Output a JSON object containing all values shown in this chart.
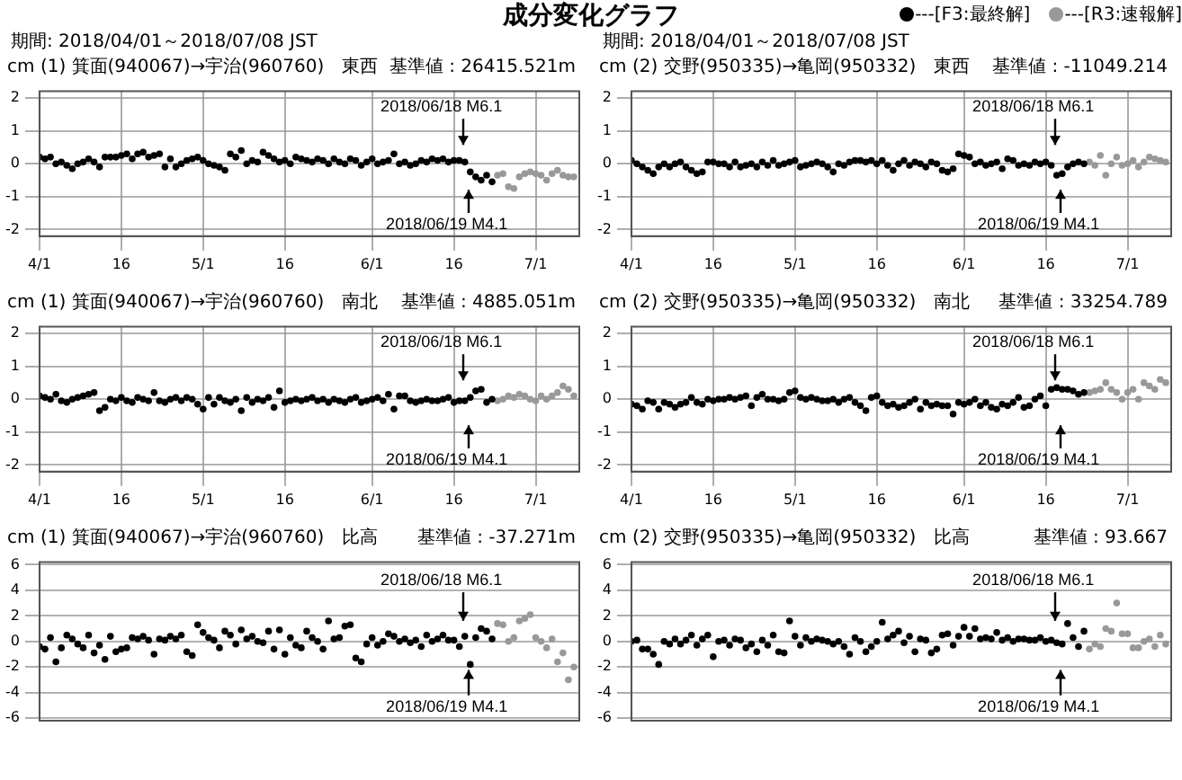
{
  "chart_data": [
    {
      "type": "scatter",
      "title": "(1) 箕面(940067)→宇治(960760)　東西",
      "subtitle": "期間: 2018/04/01～2018/07/08 JST",
      "ylabel": "cm",
      "marker": "circle",
      "grid": true,
      "xlim": [
        "2018-04-01",
        "2018-07-09"
      ],
      "ylim": [
        -2.2,
        2.2
      ],
      "yticks": [
        -2,
        -1,
        0,
        1,
        2
      ],
      "xticks": [
        {
          "value": "2018-04-01",
          "label": "4/1"
        },
        {
          "value": "2018-04-16",
          "label": "16"
        },
        {
          "value": "2018-05-01",
          "label": "5/1"
        },
        {
          "value": "2018-05-16",
          "label": "16"
        },
        {
          "value": "2018-06-01",
          "label": "6/1"
        },
        {
          "value": "2018-06-16",
          "label": "16"
        },
        {
          "value": "2018-07-01",
          "label": "7/1"
        }
      ],
      "annotations": [
        "基準値 : 26415.521m",
        "2018/06/18 M6.1",
        "2018/06/19 M4.1",
        "成分変化グラフ"
      ],
      "x": [
        "2018-04-01",
        "2018-04-02",
        "2018-04-03",
        "2018-04-04",
        "2018-04-05",
        "2018-04-06",
        "2018-04-07",
        "2018-04-08",
        "2018-04-09",
        "2018-04-10",
        "2018-04-11",
        "2018-04-12",
        "2018-04-13",
        "2018-04-14",
        "2018-04-15",
        "2018-04-16",
        "2018-04-17",
        "2018-04-18",
        "2018-04-19",
        "2018-04-20",
        "2018-04-21",
        "2018-04-22",
        "2018-04-23",
        "2018-04-24",
        "2018-04-25",
        "2018-04-26",
        "2018-04-27",
        "2018-04-28",
        "2018-04-29",
        "2018-04-30",
        "2018-05-01",
        "2018-05-02",
        "2018-05-03",
        "2018-05-04",
        "2018-05-05",
        "2018-05-06",
        "2018-05-07",
        "2018-05-08",
        "2018-05-09",
        "2018-05-10",
        "2018-05-11",
        "2018-05-12",
        "2018-05-13",
        "2018-05-14",
        "2018-05-15",
        "2018-05-16",
        "2018-05-17",
        "2018-05-18",
        "2018-05-19",
        "2018-05-20",
        "2018-05-21",
        "2018-05-22",
        "2018-05-23",
        "2018-05-24",
        "2018-05-25",
        "2018-05-26",
        "2018-05-27",
        "2018-05-28",
        "2018-05-29",
        "2018-05-30",
        "2018-05-31",
        "2018-06-01",
        "2018-06-02",
        "2018-06-03",
        "2018-06-04",
        "2018-06-05",
        "2018-06-06",
        "2018-06-07",
        "2018-06-08",
        "2018-06-09",
        "2018-06-10",
        "2018-06-11",
        "2018-06-12",
        "2018-06-13",
        "2018-06-14",
        "2018-06-15",
        "2018-06-16",
        "2018-06-17",
        "2018-06-18",
        "2018-06-19",
        "2018-06-20",
        "2018-06-21",
        "2018-06-22",
        "2018-06-23"
      ],
      "series": [
        {
          "color": "#000000",
          "values": [
            0.2,
            0.15,
            0.2,
            0,
            0.05,
            -0.05,
            -0.15,
            0,
            0.05,
            0.15,
            0.05,
            -0.1,
            0.2,
            0.2,
            0.2,
            0.25,
            0.3,
            0.15,
            0.3,
            0.35,
            0.2,
            0.25,
            0.3,
            -0.1,
            0.15,
            -0.1,
            0,
            0.1,
            0.15,
            0.2,
            0.1,
            0,
            -0.05,
            -0.1,
            -0.2,
            0.3,
            0.2,
            0.4,
            0,
            0.1,
            0.05,
            0.35,
            0.25,
            0.15,
            0.05,
            0.1,
            0,
            0.2,
            0.15,
            0.1,
            0.05,
            0.15,
            0.1,
            0,
            0.15,
            0.05,
            0,
            0.15,
            0.1,
            -0.05,
            0.05,
            0.15,
            0,
            0.05,
            0.1,
            0.3,
            0,
            0.05,
            -0.05,
            0,
            0.1,
            0.05,
            0.15,
            0.1,
            0.15,
            0.05,
            0.1,
            0.1,
            0.05,
            -0.25,
            -0.4,
            -0.5,
            -0.35,
            -0.55
          ]
        },
        {
          "color": "#999999",
          "x": [
            "2018-06-24",
            "2018-06-25",
            "2018-06-26",
            "2018-06-27",
            "2018-06-28",
            "2018-06-29",
            "2018-06-30",
            "2018-07-01",
            "2018-07-02",
            "2018-07-03",
            "2018-07-04",
            "2018-07-05",
            "2018-07-06",
            "2018-07-07",
            "2018-07-08"
          ],
          "values": [
            -0.35,
            -0.3,
            -0.7,
            -0.75,
            -0.4,
            -0.3,
            -0.25,
            -0.3,
            -0.35,
            -0.5,
            -0.3,
            -0.2,
            -0.35,
            -0.4,
            -0.4
          ]
        }
      ]
    },
    {
      "type": "scatter",
      "title": "(2) 交野(950335)→亀岡(950332)　東西",
      "subtitle": "期間: 2018/04/01～2018/07/08 JST",
      "ylabel": "cm",
      "marker": "circle",
      "grid": true,
      "legend": "top right",
      "xlim": [
        "2018-04-01",
        "2018-07-09"
      ],
      "ylim": [
        -2.2,
        2.2
      ],
      "yticks": [
        -2,
        -1,
        0,
        1,
        2
      ],
      "xticks": [
        {
          "value": "2018-04-01",
          "label": "4/1"
        },
        {
          "value": "2018-04-16",
          "label": "16"
        },
        {
          "value": "2018-05-01",
          "label": "5/1"
        },
        {
          "value": "2018-05-16",
          "label": "16"
        },
        {
          "value": "2018-06-01",
          "label": "6/1"
        },
        {
          "value": "2018-06-16",
          "label": "16"
        },
        {
          "value": "2018-07-01",
          "label": "7/1"
        }
      ],
      "annotations": [
        "基準値 : -11049.214",
        "2018/06/18 M6.1",
        "2018/06/19 M4.1"
      ],
      "x": [
        "2018-04-01",
        "2018-04-02",
        "2018-04-03",
        "2018-04-04",
        "2018-04-05",
        "2018-04-06",
        "2018-04-07",
        "2018-04-08",
        "2018-04-09",
        "2018-04-10",
        "2018-04-11",
        "2018-04-12",
        "2018-04-13",
        "2018-04-14",
        "2018-04-15",
        "2018-04-16",
        "2018-04-17",
        "2018-04-18",
        "2018-04-19",
        "2018-04-20",
        "2018-04-21",
        "2018-04-22",
        "2018-04-23",
        "2018-04-24",
        "2018-04-25",
        "2018-04-26",
        "2018-04-27",
        "2018-04-28",
        "2018-04-29",
        "2018-04-30",
        "2018-05-01",
        "2018-05-02",
        "2018-05-03",
        "2018-05-04",
        "2018-05-05",
        "2018-05-06",
        "2018-05-07",
        "2018-05-08",
        "2018-05-09",
        "2018-05-10",
        "2018-05-11",
        "2018-05-12",
        "2018-05-13",
        "2018-05-14",
        "2018-05-15",
        "2018-05-16",
        "2018-05-17",
        "2018-05-18",
        "2018-05-19",
        "2018-05-20",
        "2018-05-21",
        "2018-05-22",
        "2018-05-23",
        "2018-05-24",
        "2018-05-25",
        "2018-05-26",
        "2018-05-27",
        "2018-05-28",
        "2018-05-29",
        "2018-05-30",
        "2018-05-31",
        "2018-06-01",
        "2018-06-02",
        "2018-06-03",
        "2018-06-04",
        "2018-06-05",
        "2018-06-06",
        "2018-06-07",
        "2018-06-08",
        "2018-06-09",
        "2018-06-10",
        "2018-06-11",
        "2018-06-12",
        "2018-06-13",
        "2018-06-14",
        "2018-06-15",
        "2018-06-16",
        "2018-06-17",
        "2018-06-18",
        "2018-06-19",
        "2018-06-20",
        "2018-06-21",
        "2018-06-22",
        "2018-06-23"
      ],
      "series": [
        {
          "name": "---[F3:最終解]",
          "color": "#000000",
          "values": [
            0.1,
            0,
            -0.1,
            -0.2,
            -0.3,
            -0.1,
            0,
            -0.1,
            0,
            0.05,
            -0.1,
            -0.2,
            -0.3,
            -0.25,
            0.05,
            0.05,
            0,
            0,
            -0.1,
            0.05,
            -0.1,
            -0.05,
            0,
            -0.1,
            0.05,
            -0.05,
            0.1,
            -0.05,
            0,
            0.05,
            0.1,
            -0.1,
            -0.05,
            0,
            0.05,
            0,
            -0.1,
            -0.25,
            0,
            -0.05,
            0.05,
            0.1,
            0.1,
            0.05,
            0.1,
            0,
            0.1,
            -0.05,
            -0.2,
            0,
            0.1,
            -0.05,
            0.05,
            0,
            -0.1,
            0.05,
            0,
            -0.2,
            -0.25,
            -0.15,
            0.3,
            0.25,
            0.2,
            0,
            0.05,
            -0.05,
            0,
            0.05,
            -0.15,
            0.15,
            0.1,
            -0.05,
            0,
            -0.05,
            0.05,
            0,
            0.05,
            -0.05,
            -0.35,
            -0.3,
            -0.1,
            0,
            0.05,
            0
          ]
        },
        {
          "name": "---[R3:速報解]",
          "color": "#999999",
          "x": [
            "2018-06-24",
            "2018-06-25",
            "2018-06-26",
            "2018-06-27",
            "2018-06-28",
            "2018-06-29",
            "2018-06-30",
            "2018-07-01",
            "2018-07-02",
            "2018-07-03",
            "2018-07-04",
            "2018-07-05",
            "2018-07-06",
            "2018-07-07",
            "2018-07-08"
          ],
          "values": [
            0.05,
            -0.05,
            0.25,
            -0.35,
            0,
            0.2,
            -0.05,
            0,
            0.1,
            -0.1,
            0.05,
            0.2,
            0.15,
            0.1,
            0.05
          ]
        }
      ]
    },
    {
      "type": "scatter",
      "title": "(1) 箕面(940067)→宇治(960760)　南北",
      "ylabel": "cm",
      "marker": "circle",
      "grid": true,
      "xlim": [
        "2018-04-01",
        "2018-07-09"
      ],
      "ylim": [
        -2.2,
        2.2
      ],
      "yticks": [
        -2,
        -1,
        0,
        1,
        2
      ],
      "xticks": [
        {
          "value": "2018-04-01",
          "label": "4/1"
        },
        {
          "value": "2018-04-16",
          "label": "16"
        },
        {
          "value": "2018-05-01",
          "label": "5/1"
        },
        {
          "value": "2018-05-16",
          "label": "16"
        },
        {
          "value": "2018-06-01",
          "label": "6/1"
        },
        {
          "value": "2018-06-16",
          "label": "16"
        },
        {
          "value": "2018-07-01",
          "label": "7/1"
        }
      ],
      "annotations": [
        "基準値 : 4885.051m",
        "2018/06/18 M6.1",
        "2018/06/19 M4.1"
      ],
      "x": [
        "2018-04-01",
        "2018-04-02",
        "2018-04-03",
        "2018-04-04",
        "2018-04-05",
        "2018-04-06",
        "2018-04-07",
        "2018-04-08",
        "2018-04-09",
        "2018-04-10",
        "2018-04-11",
        "2018-04-12",
        "2018-04-13",
        "2018-04-14",
        "2018-04-15",
        "2018-04-16",
        "2018-04-17",
        "2018-04-18",
        "2018-04-19",
        "2018-04-20",
        "2018-04-21",
        "2018-04-22",
        "2018-04-23",
        "2018-04-24",
        "2018-04-25",
        "2018-04-26",
        "2018-04-27",
        "2018-04-28",
        "2018-04-29",
        "2018-04-30",
        "2018-05-01",
        "2018-05-02",
        "2018-05-03",
        "2018-05-04",
        "2018-05-05",
        "2018-05-06",
        "2018-05-07",
        "2018-05-08",
        "2018-05-09",
        "2018-05-10",
        "2018-05-11",
        "2018-05-12",
        "2018-05-13",
        "2018-05-14",
        "2018-05-15",
        "2018-05-16",
        "2018-05-17",
        "2018-05-18",
        "2018-05-19",
        "2018-05-20",
        "2018-05-21",
        "2018-05-22",
        "2018-05-23",
        "2018-05-24",
        "2018-05-25",
        "2018-05-26",
        "2018-05-27",
        "2018-05-28",
        "2018-05-29",
        "2018-05-30",
        "2018-05-31",
        "2018-06-01",
        "2018-06-02",
        "2018-06-03",
        "2018-06-04",
        "2018-06-05",
        "2018-06-06",
        "2018-06-07",
        "2018-06-08",
        "2018-06-09",
        "2018-06-10",
        "2018-06-11",
        "2018-06-12",
        "2018-06-13",
        "2018-06-14",
        "2018-06-15",
        "2018-06-16",
        "2018-06-17",
        "2018-06-18",
        "2018-06-19",
        "2018-06-20",
        "2018-06-21",
        "2018-06-22",
        "2018-06-23"
      ],
      "series": [
        {
          "color": "#000000",
          "values": [
            0.1,
            0.05,
            0,
            0.15,
            -0.05,
            -0.1,
            0,
            0.05,
            0.1,
            0.15,
            0.2,
            -0.35,
            -0.25,
            0,
            -0.05,
            0.05,
            -0.05,
            -0.1,
            0.05,
            0,
            -0.05,
            0.2,
            -0.05,
            -0.1,
            0,
            0.05,
            -0.05,
            0.05,
            0,
            -0.15,
            -0.3,
            0.05,
            -0.15,
            0.05,
            -0.05,
            -0.1,
            0,
            -0.35,
            0.05,
            -0.1,
            0,
            -0.05,
            0.05,
            -0.25,
            0.25,
            -0.1,
            -0.05,
            0,
            -0.05,
            0,
            0.05,
            -0.05,
            0,
            -0.1,
            0,
            -0.05,
            -0.1,
            0,
            0.05,
            -0.1,
            -0.05,
            0,
            0.05,
            -0.05,
            0.15,
            -0.3,
            0.1,
            0.1,
            -0.05,
            -0.1,
            -0.05,
            0,
            -0.05,
            -0.05,
            0,
            0.05,
            -0.1,
            -0.05,
            -0.05,
            0.05,
            0.25,
            0.3,
            -0.1,
            0
          ]
        },
        {
          "color": "#999999",
          "x": [
            "2018-06-24",
            "2018-06-25",
            "2018-06-26",
            "2018-06-27",
            "2018-06-28",
            "2018-06-29",
            "2018-06-30",
            "2018-07-01",
            "2018-07-02",
            "2018-07-03",
            "2018-07-04",
            "2018-07-05",
            "2018-07-06",
            "2018-07-07",
            "2018-07-08"
          ],
          "values": [
            -0.05,
            0,
            0.1,
            0.05,
            0.15,
            0.1,
            0,
            -0.05,
            0.1,
            0,
            0.1,
            0.2,
            0.4,
            0.3,
            0.1
          ]
        }
      ]
    },
    {
      "type": "scatter",
      "title": "(2) 交野(950335)→亀岡(950332)　南北",
      "ylabel": "cm",
      "marker": "circle",
      "grid": true,
      "xlim": [
        "2018-04-01",
        "2018-07-09"
      ],
      "ylim": [
        -2.2,
        2.2
      ],
      "yticks": [
        -2,
        -1,
        0,
        1,
        2
      ],
      "xticks": [
        {
          "value": "2018-04-01",
          "label": "4/1"
        },
        {
          "value": "2018-04-16",
          "label": "16"
        },
        {
          "value": "2018-05-01",
          "label": "5/1"
        },
        {
          "value": "2018-05-16",
          "label": "16"
        },
        {
          "value": "2018-06-01",
          "label": "6/1"
        },
        {
          "value": "2018-06-16",
          "label": "16"
        },
        {
          "value": "2018-07-01",
          "label": "7/1"
        }
      ],
      "annotations": [
        "基準値 : 33254.789",
        "2018/06/18 M6.1",
        "2018/06/19 M4.1"
      ],
      "x": [
        "2018-04-01",
        "2018-04-02",
        "2018-04-03",
        "2018-04-04",
        "2018-04-05",
        "2018-04-06",
        "2018-04-07",
        "2018-04-08",
        "2018-04-09",
        "2018-04-10",
        "2018-04-11",
        "2018-04-12",
        "2018-04-13",
        "2018-04-14",
        "2018-04-15",
        "2018-04-16",
        "2018-04-17",
        "2018-04-18",
        "2018-04-19",
        "2018-04-20",
        "2018-04-21",
        "2018-04-22",
        "2018-04-23",
        "2018-04-24",
        "2018-04-25",
        "2018-04-26",
        "2018-04-27",
        "2018-04-28",
        "2018-04-29",
        "2018-04-30",
        "2018-05-01",
        "2018-05-02",
        "2018-05-03",
        "2018-05-04",
        "2018-05-05",
        "2018-05-06",
        "2018-05-07",
        "2018-05-08",
        "2018-05-09",
        "2018-05-10",
        "2018-05-11",
        "2018-05-12",
        "2018-05-13",
        "2018-05-14",
        "2018-05-15",
        "2018-05-16",
        "2018-05-17",
        "2018-05-18",
        "2018-05-19",
        "2018-05-20",
        "2018-05-21",
        "2018-05-22",
        "2018-05-23",
        "2018-05-24",
        "2018-05-25",
        "2018-05-26",
        "2018-05-27",
        "2018-05-28",
        "2018-05-29",
        "2018-05-30",
        "2018-05-31",
        "2018-06-01",
        "2018-06-02",
        "2018-06-03",
        "2018-06-04",
        "2018-06-05",
        "2018-06-06",
        "2018-06-07",
        "2018-06-08",
        "2018-06-09",
        "2018-06-10",
        "2018-06-11",
        "2018-06-12",
        "2018-06-13",
        "2018-06-14",
        "2018-06-15",
        "2018-06-16",
        "2018-06-17",
        "2018-06-18",
        "2018-06-19",
        "2018-06-20",
        "2018-06-21",
        "2018-06-22",
        "2018-06-23"
      ],
      "series": [
        {
          "color": "#000000",
          "values": [
            -0.15,
            -0.2,
            -0.3,
            -0.05,
            -0.1,
            -0.3,
            -0.1,
            -0.15,
            -0.25,
            -0.15,
            -0.1,
            0.05,
            -0.1,
            -0.15,
            0,
            -0.05,
            0,
            0,
            0.05,
            0,
            0.05,
            0.1,
            -0.2,
            0.05,
            0.15,
            0,
            0,
            -0.05,
            0,
            0.2,
            0.25,
            0.05,
            0,
            0.05,
            0,
            -0.05,
            -0.05,
            0,
            -0.1,
            0,
            0.05,
            -0.1,
            -0.2,
            -0.35,
            0.05,
            0.1,
            -0.1,
            -0.2,
            -0.15,
            -0.25,
            -0.2,
            -0.1,
            0,
            -0.3,
            -0.1,
            -0.2,
            -0.15,
            -0.2,
            -0.2,
            -0.45,
            -0.1,
            -0.15,
            -0.1,
            0,
            -0.2,
            -0.1,
            -0.25,
            -0.3,
            -0.15,
            -0.2,
            -0.1,
            0.05,
            -0.25,
            -0.2,
            0,
            0.1,
            -0.2,
            0.3,
            0.35,
            0.3,
            0.3,
            0.25,
            0.15,
            0.2
          ]
        },
        {
          "color": "#999999",
          "x": [
            "2018-06-24",
            "2018-06-25",
            "2018-06-26",
            "2018-06-27",
            "2018-06-28",
            "2018-06-29",
            "2018-06-30",
            "2018-07-01",
            "2018-07-02",
            "2018-07-03",
            "2018-07-04",
            "2018-07-05",
            "2018-07-06",
            "2018-07-07",
            "2018-07-08"
          ],
          "values": [
            0.2,
            0.25,
            0.3,
            0.5,
            0.3,
            0.2,
            0,
            0.2,
            0.3,
            0,
            0.5,
            0.4,
            0.3,
            0.6,
            0.5
          ]
        }
      ]
    },
    {
      "type": "scatter",
      "title": "(1) 箕面(940067)→宇治(960760)　比高",
      "ylabel": "cm",
      "marker": "circle",
      "grid": true,
      "tick_labels": "y",
      "xlim": [
        "2018-04-01",
        "2018-07-09"
      ],
      "ylim": [
        -6.2,
        6.2
      ],
      "yticks": [
        -6,
        -4,
        -2,
        0,
        2,
        4,
        6
      ],
      "xticks": [
        {
          "value": "2018-04-01",
          "label": null
        },
        {
          "value": "2018-04-16",
          "label": null
        },
        {
          "value": "2018-05-01",
          "label": null
        },
        {
          "value": "2018-05-16",
          "label": null
        },
        {
          "value": "2018-06-01",
          "label": null
        },
        {
          "value": "2018-06-16",
          "label": null
        },
        {
          "value": "2018-07-01",
          "label": null
        }
      ],
      "annotations": [
        "基準値 : -37.271m",
        "2018/06/18 M6.1",
        "2018/06/19 M4.1"
      ],
      "x": [
        "2018-04-01",
        "2018-04-02",
        "2018-04-03",
        "2018-04-04",
        "2018-04-05",
        "2018-04-06",
        "2018-04-07",
        "2018-04-08",
        "2018-04-09",
        "2018-04-10",
        "2018-04-11",
        "2018-04-12",
        "2018-04-13",
        "2018-04-14",
        "2018-04-15",
        "2018-04-16",
        "2018-04-17",
        "2018-04-18",
        "2018-04-19",
        "2018-04-20",
        "2018-04-21",
        "2018-04-22",
        "2018-04-23",
        "2018-04-24",
        "2018-04-25",
        "2018-04-26",
        "2018-04-27",
        "2018-04-28",
        "2018-04-29",
        "2018-04-30",
        "2018-05-01",
        "2018-05-02",
        "2018-05-03",
        "2018-05-04",
        "2018-05-05",
        "2018-05-06",
        "2018-05-07",
        "2018-05-08",
        "2018-05-09",
        "2018-05-10",
        "2018-05-11",
        "2018-05-12",
        "2018-05-13",
        "2018-05-14",
        "2018-05-15",
        "2018-05-16",
        "2018-05-17",
        "2018-05-18",
        "2018-05-19",
        "2018-05-20",
        "2018-05-21",
        "2018-05-22",
        "2018-05-23",
        "2018-05-24",
        "2018-05-25",
        "2018-05-26",
        "2018-05-27",
        "2018-05-28",
        "2018-05-29",
        "2018-05-30",
        "2018-05-31",
        "2018-06-01",
        "2018-06-02",
        "2018-06-03",
        "2018-06-04",
        "2018-06-05",
        "2018-06-06",
        "2018-06-07",
        "2018-06-08",
        "2018-06-09",
        "2018-06-10",
        "2018-06-11",
        "2018-06-12",
        "2018-06-13",
        "2018-06-14",
        "2018-06-15",
        "2018-06-16",
        "2018-06-17",
        "2018-06-18",
        "2018-06-19",
        "2018-06-20",
        "2018-06-21",
        "2018-06-22",
        "2018-06-23"
      ],
      "series": [
        {
          "color": "#000000",
          "values": [
            -0.4,
            -0.6,
            0.3,
            -1.6,
            -0.5,
            0.5,
            0.2,
            -0.2,
            -0.5,
            0.5,
            -0.9,
            -0.3,
            -1.4,
            0.4,
            -0.8,
            -0.6,
            -0.5,
            0.3,
            0.2,
            0.4,
            0.1,
            -1,
            0.2,
            0.1,
            0.4,
            0.2,
            0.5,
            -0.8,
            -1.1,
            1.3,
            0.7,
            0.3,
            0.1,
            -0.5,
            0.8,
            0.5,
            -0.2,
            0.9,
            0.2,
            0.4,
            0,
            -0.1,
            0.8,
            -0.6,
            0.9,
            -1,
            0.3,
            -0.3,
            -0.5,
            0.8,
            0.3,
            0,
            -0.6,
            1.6,
            0.2,
            0.3,
            1.2,
            1.3,
            -1.3,
            -1.6,
            -0.2,
            0.3,
            -0.3,
            0,
            0.6,
            0.4,
            0,
            0.2,
            -0.1,
            0.1,
            -0.4,
            0.5,
            0,
            0.2,
            0.5,
            0.1,
            0.1,
            -0.4,
            0.4,
            -1.8,
            0.3,
            1,
            0.8,
            0.2
          ]
        },
        {
          "color": "#999999",
          "x": [
            "2018-06-24",
            "2018-06-25",
            "2018-06-26",
            "2018-06-27",
            "2018-06-28",
            "2018-06-29",
            "2018-06-30",
            "2018-07-01",
            "2018-07-02",
            "2018-07-03",
            "2018-07-04",
            "2018-07-05",
            "2018-07-06",
            "2018-07-07",
            "2018-07-08"
          ],
          "values": [
            1.4,
            1.3,
            0,
            0.3,
            1.6,
            1.8,
            2.1,
            0.3,
            0,
            -0.5,
            0.2,
            -1.6,
            -0.9,
            -3,
            -2
          ]
        }
      ]
    },
    {
      "type": "scatter",
      "title": "(2) 交野(950335)→亀岡(950332)　比高",
      "ylabel": "cm",
      "marker": "circle",
      "grid": true,
      "tick_labels": "y",
      "xlim": [
        "2018-04-01",
        "2018-07-09"
      ],
      "ylim": [
        -6.2,
        6.2
      ],
      "yticks": [
        -6,
        -4,
        -2,
        0,
        2,
        4,
        6
      ],
      "xticks": [
        {
          "value": "2018-04-01",
          "label": null
        },
        {
          "value": "2018-04-16",
          "label": null
        },
        {
          "value": "2018-05-01",
          "label": null
        },
        {
          "value": "2018-05-16",
          "label": null
        },
        {
          "value": "2018-06-01",
          "label": null
        },
        {
          "value": "2018-06-16",
          "label": null
        },
        {
          "value": "2018-07-01",
          "label": null
        }
      ],
      "annotations": [
        "基準値 : 93.667",
        "2018/06/18 M6.1",
        "2018/06/19 M4.1"
      ],
      "x": [
        "2018-04-01",
        "2018-04-02",
        "2018-04-03",
        "2018-04-04",
        "2018-04-05",
        "2018-04-06",
        "2018-04-07",
        "2018-04-08",
        "2018-04-09",
        "2018-04-10",
        "2018-04-11",
        "2018-04-12",
        "2018-04-13",
        "2018-04-14",
        "2018-04-15",
        "2018-04-16",
        "2018-04-17",
        "2018-04-18",
        "2018-04-19",
        "2018-04-20",
        "2018-04-21",
        "2018-04-22",
        "2018-04-23",
        "2018-04-24",
        "2018-04-25",
        "2018-04-26",
        "2018-04-27",
        "2018-04-28",
        "2018-04-29",
        "2018-04-30",
        "2018-05-01",
        "2018-05-02",
        "2018-05-03",
        "2018-05-04",
        "2018-05-05",
        "2018-05-06",
        "2018-05-07",
        "2018-05-08",
        "2018-05-09",
        "2018-05-10",
        "2018-05-11",
        "2018-05-12",
        "2018-05-13",
        "2018-05-14",
        "2018-05-15",
        "2018-05-16",
        "2018-05-17",
        "2018-05-18",
        "2018-05-19",
        "2018-05-20",
        "2018-05-21",
        "2018-05-22",
        "2018-05-23",
        "2018-05-24",
        "2018-05-25",
        "2018-05-26",
        "2018-05-27",
        "2018-05-28",
        "2018-05-29",
        "2018-05-30",
        "2018-05-31",
        "2018-06-01",
        "2018-06-02",
        "2018-06-03",
        "2018-06-04",
        "2018-06-05",
        "2018-06-06",
        "2018-06-07",
        "2018-06-08",
        "2018-06-09",
        "2018-06-10",
        "2018-06-11",
        "2018-06-12",
        "2018-06-13",
        "2018-06-14",
        "2018-06-15",
        "2018-06-16",
        "2018-06-17",
        "2018-06-18",
        "2018-06-19",
        "2018-06-20",
        "2018-06-21",
        "2018-06-22",
        "2018-06-23"
      ],
      "series": [
        {
          "color": "#000000",
          "values": [
            0,
            0.1,
            -0.6,
            -0.6,
            -1,
            -1.8,
            0,
            -0.2,
            0.2,
            -0.2,
            0.1,
            0.5,
            -0.3,
            0.2,
            0.5,
            -1.2,
            0,
            0.1,
            -0.3,
            0.2,
            0.1,
            -0.5,
            -0.2,
            -0.8,
            0.1,
            -0.3,
            0.5,
            -0.8,
            -0.9,
            1.6,
            0.4,
            -0.3,
            0.3,
            0,
            0.2,
            0.1,
            0,
            -0.2,
            0,
            -0.4,
            -1,
            0.3,
            0,
            -0.8,
            -0.4,
            0,
            1.5,
            0.2,
            0.5,
            0.8,
            -0.1,
            0.4,
            -0.8,
            0.2,
            0.1,
            -0.9,
            -0.6,
            0.5,
            0.6,
            -0.3,
            0.4,
            1.1,
            0.4,
            1,
            0.2,
            0.3,
            0.2,
            0.7,
            0.1,
            0.3,
            0,
            0.2,
            0.2,
            0.1,
            0.1,
            0.3,
            0,
            0.1,
            -0.1,
            -0.2,
            1.4,
            0.3,
            -0.4,
            0.8
          ]
        },
        {
          "color": "#999999",
          "x": [
            "2018-06-24",
            "2018-06-25",
            "2018-06-26",
            "2018-06-27",
            "2018-06-28",
            "2018-06-29",
            "2018-06-30",
            "2018-07-01",
            "2018-07-02",
            "2018-07-03",
            "2018-07-04",
            "2018-07-05",
            "2018-07-06",
            "2018-07-07",
            "2018-07-08"
          ],
          "values": [
            -0.6,
            -0.2,
            -0.4,
            1,
            0.8,
            3,
            0.6,
            0.6,
            -0.5,
            -0.5,
            0,
            0.2,
            -0.4,
            0.5,
            -0.2
          ]
        }
      ]
    }
  ]
}
